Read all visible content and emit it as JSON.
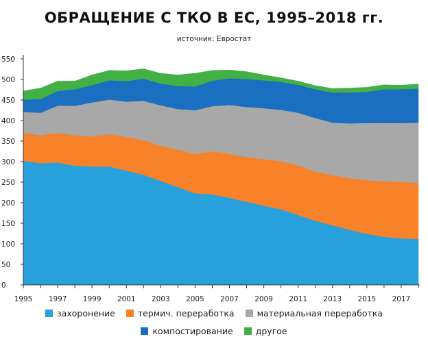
{
  "chart_data": {
    "type": "area",
    "stacked": true,
    "title": "ОБРАЩЕНИЕ С ТКО В ЕС, 1995–2018 гг.",
    "subtitle": "источник: Евростат",
    "xlabel": "",
    "ylabel": "",
    "ylim": [
      0,
      550
    ],
    "y_ticks": [
      0,
      50,
      100,
      150,
      200,
      250,
      300,
      350,
      400,
      450,
      500,
      550
    ],
    "xlim": [
      1995,
      2018
    ],
    "x_tick_labels": [
      "1995",
      "1997",
      "1999",
      "2001",
      "2003",
      "2005",
      "2007",
      "2009",
      "2011",
      "2013",
      "2015",
      "2017"
    ],
    "x": [
      1995,
      1996,
      1997,
      1998,
      1999,
      2000,
      2001,
      2002,
      2003,
      2004,
      2005,
      2006,
      2007,
      2008,
      2009,
      2010,
      2011,
      2012,
      2013,
      2014,
      2015,
      2016,
      2017,
      2018
    ],
    "grid": false,
    "legend_position": "bottom",
    "series": [
      {
        "name": "захоронение",
        "color": "#27a0dc",
        "values": [
          302,
          296,
          298,
          290,
          288,
          288,
          278,
          268,
          253,
          238,
          223,
          220,
          212,
          202,
          193,
          184,
          170,
          156,
          145,
          134,
          124,
          117,
          113,
          112
        ]
      },
      {
        "name": "термич. переработка",
        "color": "#f7822a",
        "values": [
          68,
          68,
          72,
          74,
          73,
          79,
          82,
          84,
          86,
          91,
          96,
          105,
          107,
          109,
          113,
          117,
          121,
          120,
          122,
          126,
          131,
          135,
          138,
          136
        ]
      },
      {
        "name": "материальная переработка",
        "color": "#a8a8a8",
        "values": [
          51,
          55,
          66,
          72,
          83,
          84,
          86,
          96,
          98,
          99,
          106,
          110,
          119,
          122,
          124,
          125,
          128,
          130,
          128,
          133,
          139,
          142,
          143,
          147
        ]
      },
      {
        "name": "компостирование",
        "color": "#1a6fc1",
        "values": [
          30,
          33,
          36,
          40,
          42,
          47,
          50,
          54,
          53,
          56,
          58,
          62,
          65,
          68,
          68,
          68,
          68,
          70,
          73,
          75,
          76,
          82,
          82,
          83
        ]
      },
      {
        "name": "другое",
        "color": "#42b045",
        "values": [
          21,
          27,
          24,
          20,
          25,
          24,
          25,
          24,
          25,
          27,
          32,
          25,
          20,
          18,
          13,
          10,
          9,
          9,
          10,
          11,
          11,
          11,
          10,
          11
        ]
      }
    ]
  }
}
